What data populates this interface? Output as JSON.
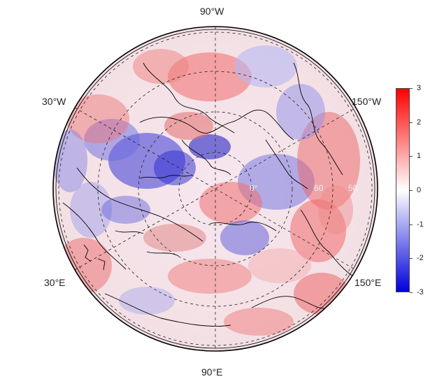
{
  "map": {
    "longitude_labels": {
      "top": "90°W",
      "upper_left": "30°W",
      "upper_right": "150°W",
      "lower_left": "30°E",
      "lower_right": "150°E",
      "bottom": "90°E"
    },
    "latitude_labels": [
      "0°",
      "60",
      "50"
    ],
    "projection": "north polar stereographic",
    "graticule": "dashed"
  },
  "colorbar": {
    "ticks": [
      "3",
      "2",
      "1",
      "0",
      "-1",
      "-2",
      "-3"
    ],
    "min": -3,
    "max": 3,
    "colors": {
      "high": "#ff0000",
      "mid": "#ffffff",
      "low": "#0000dd"
    }
  }
}
